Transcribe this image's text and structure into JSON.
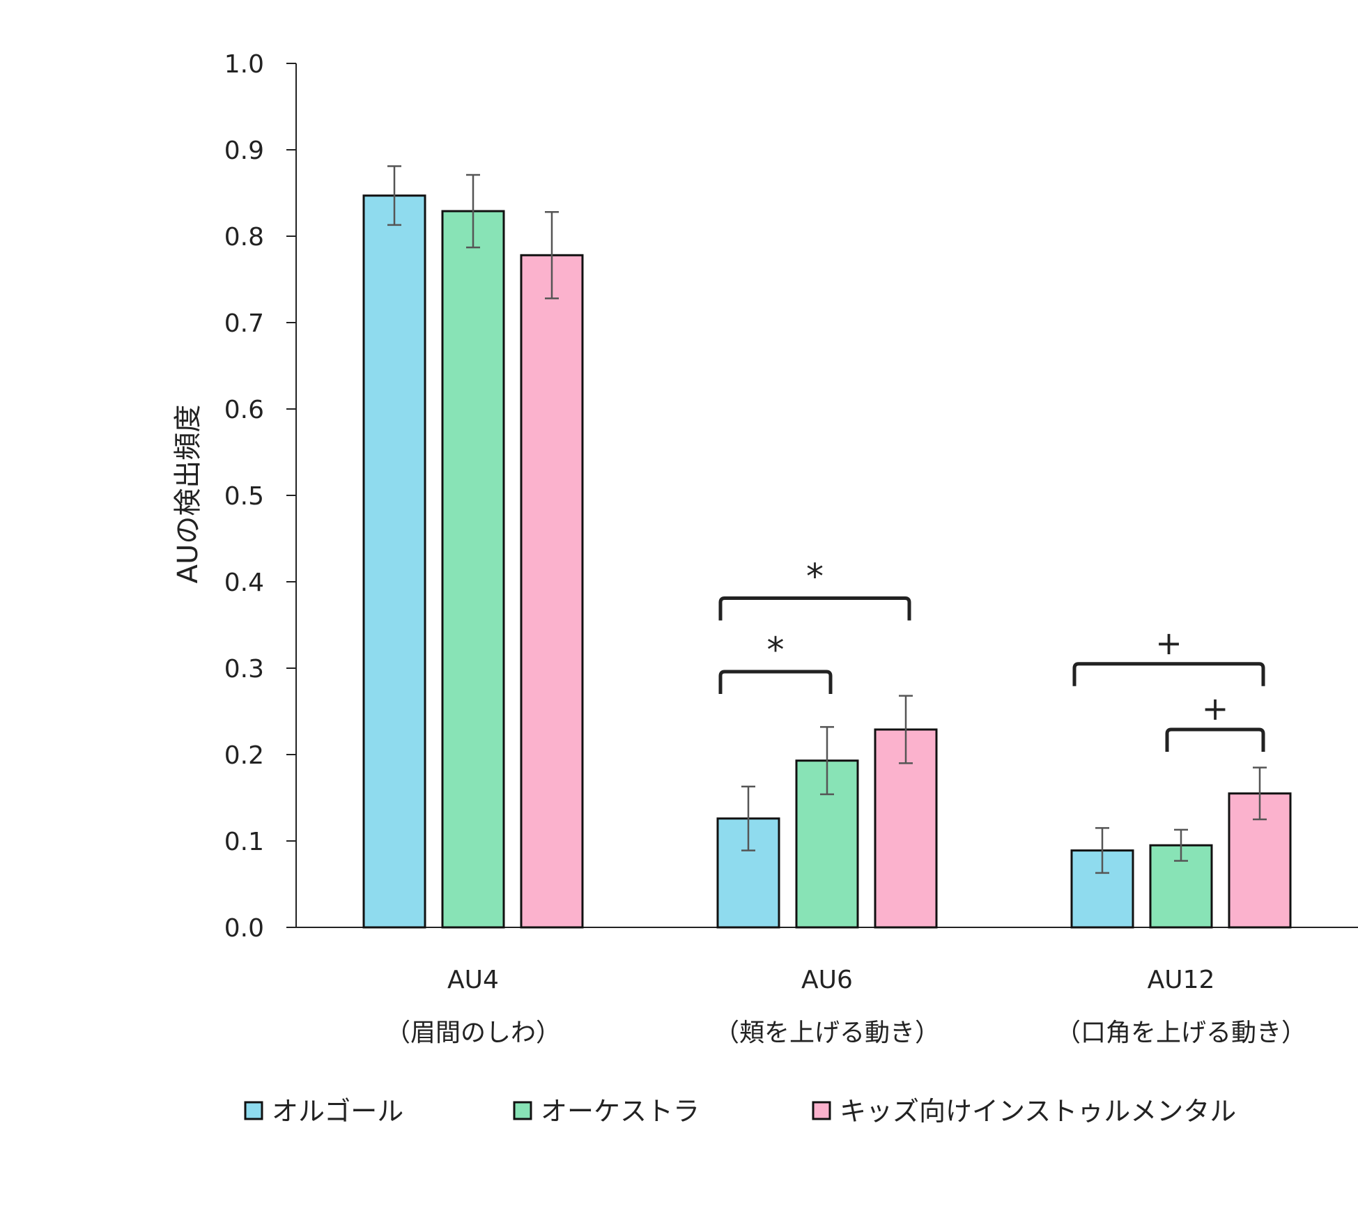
{
  "chart_data": {
    "type": "bar",
    "title": "",
    "xlabel": "",
    "ylabel": "AUの検出頻度",
    "ylim": [
      0,
      1.0
    ],
    "yticks": [
      "0.0",
      "0.1",
      "0.2",
      "0.3",
      "0.4",
      "0.5",
      "0.6",
      "0.7",
      "0.8",
      "0.9",
      "1.0"
    ],
    "grid": false,
    "categories": [
      {
        "code": "AU4",
        "desc": "（眉間のしわ）"
      },
      {
        "code": "AU6",
        "desc": "（頬を上げる動き）"
      },
      {
        "code": "AU12",
        "desc": "（口角を上げる動き）"
      }
    ],
    "series": [
      {
        "name": "オルゴール",
        "color": "#8FDBEE",
        "values": [
          0.847,
          0.126,
          0.089
        ],
        "errors": [
          0.034,
          0.037,
          0.026
        ]
      },
      {
        "name": "オーケストラ",
        "color": "#88E3B6",
        "values": [
          0.829,
          0.193,
          0.095
        ],
        "errors": [
          0.042,
          0.039,
          0.018
        ]
      },
      {
        "name": "キッズ向けインストゥルメンタル",
        "color": "#FBB2CD",
        "values": [
          0.778,
          0.229,
          0.155
        ],
        "errors": [
          0.05,
          0.039,
          0.03
        ]
      }
    ],
    "legend_position": "bottom",
    "significance": [
      {
        "category": 1,
        "from": 0,
        "to": 2,
        "y": 0.381,
        "label": "*"
      },
      {
        "category": 1,
        "from": 0,
        "to": 1,
        "y": 0.296,
        "label": "*"
      },
      {
        "category": 2,
        "from": 0,
        "to": 2,
        "y": 0.305,
        "label": "+"
      },
      {
        "category": 2,
        "from": 1,
        "to": 2,
        "y": 0.229,
        "label": "+"
      }
    ]
  }
}
